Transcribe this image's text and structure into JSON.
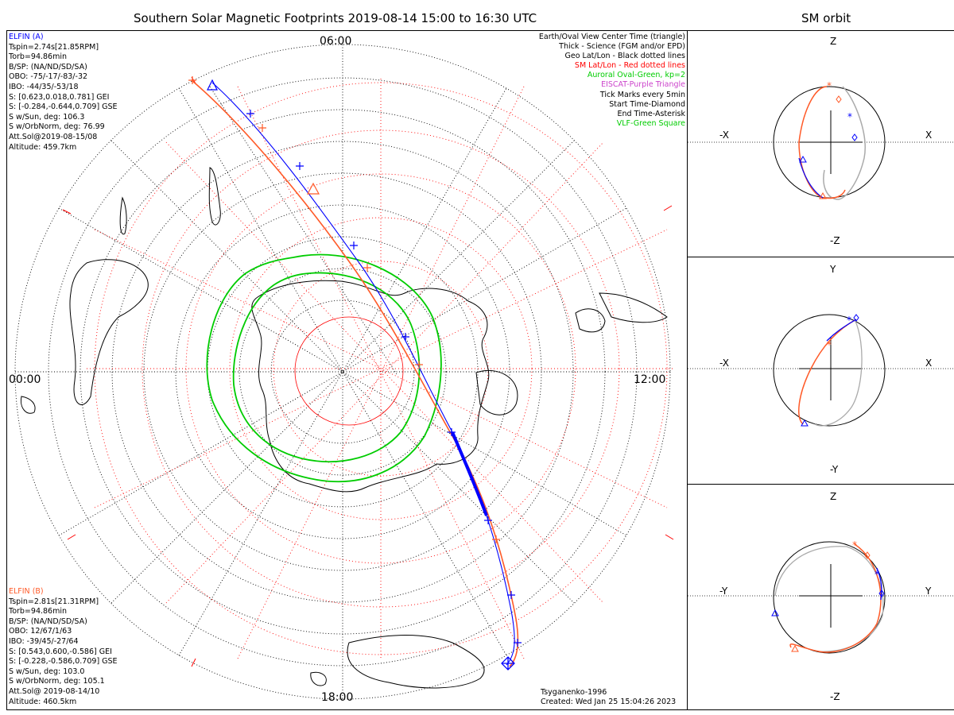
{
  "header": {
    "title": "Southern Solar Magnetic Footprints 2019-08-14 15:00 to 16:30 UTC",
    "orbit_title": "SM orbit"
  },
  "map": {
    "clock_labels": {
      "top": "06:00",
      "left": "00:00",
      "right": "12:00",
      "bottom": "18:00"
    }
  },
  "legend": [
    {
      "text": "Earth/Oval View Center Time (triangle)",
      "color": "#000000"
    },
    {
      "text": "Thick - Science (FGM and/or EPD)",
      "color": "#000000"
    },
    {
      "text": "Geo Lat/Lon - Black dotted lines",
      "color": "#000000"
    },
    {
      "text": "SM Lat/Lon - Red dotted lines",
      "color": "#ff0000"
    },
    {
      "text": "Auroral Oval-Green, kp=2",
      "color": "#00cc00"
    },
    {
      "text": "EISCAT-Purple Triangle",
      "color": "#cc44cc"
    },
    {
      "text": "Tick Marks every 5min",
      "color": "#000000"
    },
    {
      "text": "Start Time-Diamond",
      "color": "#000000"
    },
    {
      "text": "End Time-Asterisk",
      "color": "#000000"
    },
    {
      "text": "VLF-Green Square",
      "color": "#00cc00"
    }
  ],
  "elfin_a": {
    "name": "ELFIN (A)",
    "color": "#0000ff",
    "lines": [
      "Tspin=2.74s[21.85RPM]",
      "Torb=94.86min",
      "B/SP: (NA/ND/SD/SA)",
      "OBO: -75/-17/-83/-32",
      "IBO: -44/35/-53/18",
      "S: [0.623,0.018,0.781] GEI",
      "S: [-0.284,-0.644,0.709] GSE",
      "S w/Sun, deg: 106.3",
      "S w/OrbNorm, deg: 76.99",
      "Att.Sol@2019-08-15/08",
      "Altitude: 459.7km"
    ]
  },
  "elfin_b": {
    "name": "ELFIN (B)",
    "color": "#ff5a28",
    "lines": [
      "Tspin=2.81s[21.31RPM]",
      "Torb=94.86min",
      "B/SP: (NA/ND/SD/SA)",
      "OBO: 12/67/1/63",
      "IBO: -39/45/-27/64",
      "S: [0.543,0.600,-0.586] GEI",
      "S: [-0.228,-0.586,0.709] GSE",
      "S w/Sun, deg: 103.0",
      "S w/OrbNorm, deg: 105.1",
      "Att.Sol@ 2019-08-14/10",
      "Altitude: 460.5km"
    ]
  },
  "footer": {
    "model": "Tsyganenko-1996",
    "created": "Created: Wed Jan 25 15:04:26 2023"
  },
  "orbit_panels": [
    {
      "top": "Z",
      "bottom": "-Z",
      "left": "-X",
      "right": "X"
    },
    {
      "top": "Y",
      "bottom": "-Y",
      "left": "-X",
      "right": "X"
    },
    {
      "top": "Z",
      "bottom": "-Z",
      "left": "-Y",
      "right": "Y"
    }
  ],
  "colors": {
    "elfin_a": "#0000ff",
    "elfin_b": "#ff5a28",
    "sm_grid": "#ff0000",
    "geo_grid": "#000000",
    "auroral_oval": "#00cc00",
    "orbit_alt": "#aaaaaa"
  }
}
